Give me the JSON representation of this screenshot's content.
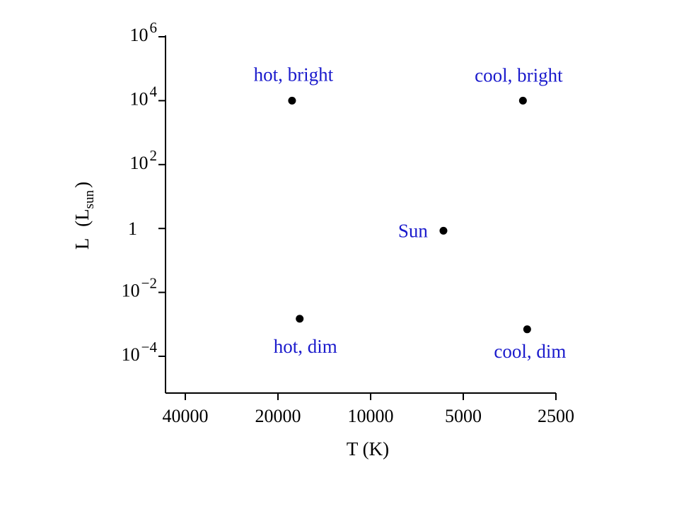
{
  "chart_data": {
    "type": "scatter",
    "title": "",
    "xlabel": "T (K)",
    "ylabel": {
      "main": "L",
      "symbol": "L",
      "subscript": "sun"
    },
    "x_scale": "log-reversed",
    "y_scale": "log",
    "grid": false,
    "label_color": "#1a1acc",
    "point_color": "#000000",
    "x_ticks": [
      {
        "value": 40000,
        "label": "40000"
      },
      {
        "value": 20000,
        "label": "20000"
      },
      {
        "value": 10000,
        "label": "10000"
      },
      {
        "value": 5000,
        "label": "5000"
      },
      {
        "value": 2500,
        "label": "2500"
      }
    ],
    "y_ticks": [
      {
        "value": 1000000,
        "base": "10",
        "exp": "6"
      },
      {
        "value": 10000,
        "base": "10",
        "exp": "4"
      },
      {
        "value": 100,
        "base": "10",
        "exp": "2"
      },
      {
        "value": 1,
        "base": "1",
        "exp": ""
      },
      {
        "value": 0.01,
        "base": "10",
        "exp": "−2"
      },
      {
        "value": 0.0001,
        "base": "10",
        "exp": "−4"
      }
    ],
    "points": [
      {
        "label": "hot, bright",
        "x": 18000,
        "y": 10000
      },
      {
        "label": "cool, bright",
        "x": 3200,
        "y": 10000
      },
      {
        "label": "Sun",
        "x": 5800,
        "y": 0.85
      },
      {
        "label": "hot, dim",
        "x": 17000,
        "y": 0.0015
      },
      {
        "label": "cool, dim",
        "x": 3100,
        "y": 0.0007
      }
    ]
  }
}
